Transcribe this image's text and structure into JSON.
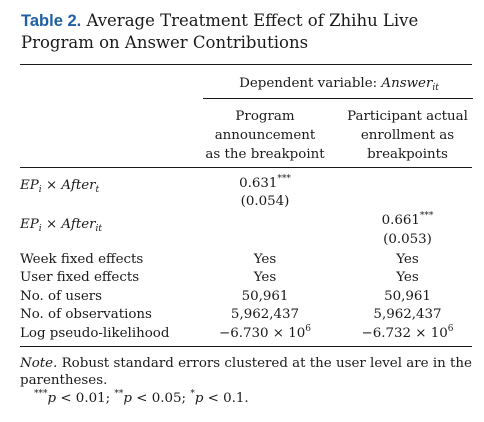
{
  "title": {
    "label": "Table 2.",
    "text": "Average Treatment Effect of Zhihu Live Program on Answer Contributions"
  },
  "dependent_variable": {
    "prefix": "Dependent variable: ",
    "var": "Answer",
    "sub": "it"
  },
  "columns": [
    {
      "line1": "Program",
      "line2": "announcement",
      "line3": "as the breakpoint"
    },
    {
      "line1": "Participant actual",
      "line2": "enrollment as",
      "line3": "breakpoints"
    }
  ],
  "rows": {
    "ep_after_t": {
      "ep": "EP",
      "ep_sub": "i",
      "times": " × ",
      "after": "After",
      "after_sub": "t",
      "col1_coef": "0.631",
      "col1_stars": "***",
      "col1_se": "(0.054)"
    },
    "ep_after_it": {
      "ep": "EP",
      "ep_sub": "i",
      "times": " × ",
      "after": "After",
      "after_sub": "it",
      "col2_coef": "0.661",
      "col2_stars": "***",
      "col2_se": "(0.053)"
    },
    "stats": [
      {
        "label": "Week fixed effects",
        "col1": "Yes",
        "col2": "Yes"
      },
      {
        "label": "User fixed effects",
        "col1": "Yes",
        "col2": "Yes"
      },
      {
        "label": "No. of users",
        "col1": "50,961",
        "col2": "50,961"
      },
      {
        "label": "No. of observations",
        "col1": "5,962,437",
        "col2": "5,962,437"
      }
    ],
    "loglik": {
      "label": "Log pseudo-likelihood",
      "col1_base": "−6.730 × 10",
      "col1_exp": "6",
      "col2_base": "−6.732 × 10",
      "col2_exp": "6"
    }
  },
  "note": {
    "label": "Note.",
    "text": " Robust standard errors clustered at the user level are in the parentheses."
  },
  "significance": {
    "s1_stars": "***",
    "s1_var": "p",
    "s1_rest": " < 0.01; ",
    "s2_stars": "**",
    "s2_var": "p",
    "s2_rest": " < 0.05; ",
    "s3_stars": "*",
    "s3_var": "p",
    "s3_rest": " < 0.1."
  }
}
